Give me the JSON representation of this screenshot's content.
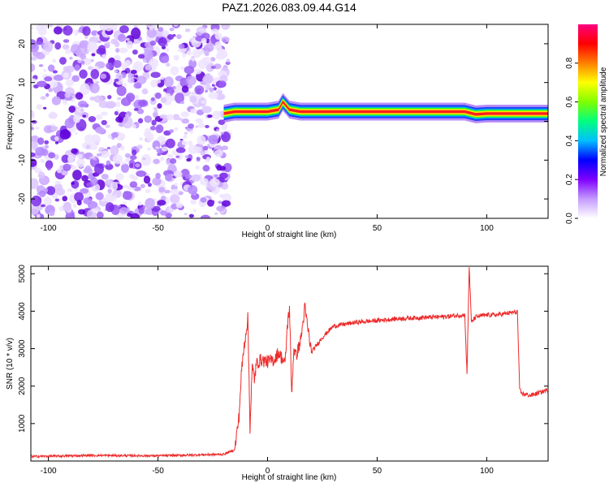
{
  "figure_title": "PAZ1.2026.083.09.44.G14",
  "colors": {
    "snr_line": "#ee2a2a",
    "ridge_core": "#ff1d1d",
    "ridge_mid": "#ffe000",
    "ridge_outer": "#2cff2c",
    "ridge_edge": "#00a0ff",
    "noise": "#7a00e0"
  },
  "chart_data": [
    {
      "type": "heatmap",
      "name": "spectrogram",
      "title": "PAZ1.2026.083.09.44.G14",
      "xlabel": "Height of straight line (km)",
      "ylabel": "Frequency (Hz)",
      "xlim": [
        -108,
        128
      ],
      "ylim": [
        -25,
        25
      ],
      "xticks": [
        -100,
        -50,
        0,
        50,
        100
      ],
      "yticks": [
        -20,
        -10,
        0,
        10,
        20
      ],
      "noise_region_x": [
        -108,
        -20
      ],
      "ridge": {
        "x": [
          -20,
          -15,
          -10,
          -5,
          0,
          5,
          7,
          10,
          15,
          20,
          40,
          60,
          80,
          90,
          95,
          100,
          110,
          128
        ],
        "freq": [
          2.0,
          2.5,
          2.5,
          2.5,
          2.5,
          3.0,
          5.0,
          3.0,
          2.5,
          2.5,
          2.5,
          2.5,
          2.5,
          2.5,
          1.8,
          2.0,
          2.0,
          2.0
        ]
      },
      "colorbar": {
        "label": "Normalized spectral amplitude",
        "range": [
          0,
          1
        ],
        "ticks": [
          0.0,
          0.2,
          0.4,
          0.6,
          0.8
        ],
        "colors": [
          "#ffffff",
          "#c49cff",
          "#8000ff",
          "#0000ff",
          "#00bfff",
          "#00ff7f",
          "#7fff00",
          "#ffff00",
          "#ff8000",
          "#ff0000",
          "#ff0080"
        ]
      }
    },
    {
      "type": "line",
      "name": "snr",
      "xlabel": "Height of straight line (km)",
      "ylabel": "SNR (10 * v/v)",
      "xlim": [
        -108,
        128
      ],
      "ylim": [
        0,
        5200
      ],
      "xticks": [
        -100,
        -50,
        0,
        50,
        100
      ],
      "yticks": [
        1000,
        2000,
        3000,
        4000,
        5000
      ],
      "series": [
        {
          "name": "SNR",
          "x": [
            -108,
            -80,
            -50,
            -20,
            -15,
            -13,
            -12,
            -11,
            -10,
            -9,
            -8,
            -7,
            -6,
            -5,
            -3,
            0,
            3,
            5,
            8,
            9,
            10,
            11,
            12,
            13,
            15,
            16,
            17,
            20,
            25,
            30,
            40,
            50,
            60,
            70,
            80,
            90,
            91,
            92,
            93,
            95,
            100,
            105,
            110,
            114,
            115,
            116,
            120,
            128
          ],
          "y": [
            120,
            150,
            140,
            180,
            300,
            1200,
            2300,
            2900,
            3400,
            3800,
            900,
            2500,
            2200,
            2600,
            2700,
            2650,
            2700,
            2900,
            2600,
            3600,
            4100,
            1800,
            3000,
            2800,
            3200,
            3600,
            4100,
            2900,
            3300,
            3600,
            3700,
            3750,
            3800,
            3830,
            3850,
            3900,
            2300,
            5200,
            3700,
            3850,
            3900,
            3900,
            3950,
            3980,
            1900,
            1800,
            1750,
            1900
          ]
        }
      ]
    }
  ]
}
